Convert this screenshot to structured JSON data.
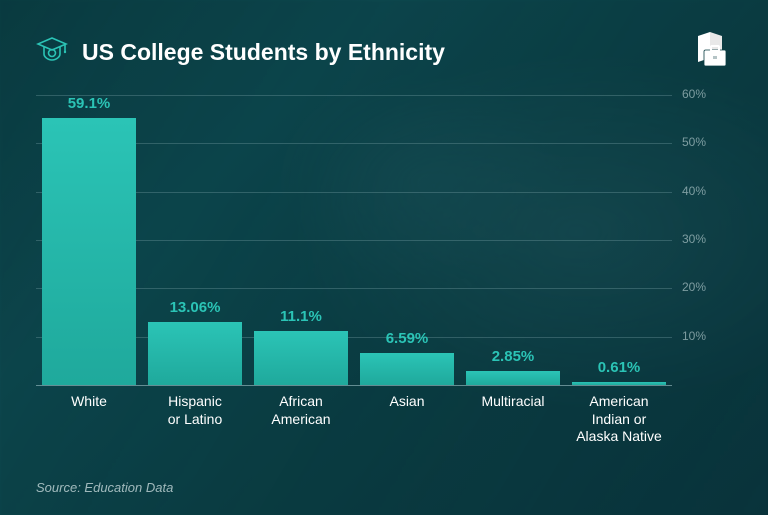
{
  "title": "US College Students by Ethnicity",
  "source": "Source: Education Data",
  "chart": {
    "type": "bar",
    "ymax": 60,
    "ytick_step": 10,
    "grid_color": "rgba(120,160,165,0.35)",
    "bar_color": "#2bc4b6",
    "value_color": "#2bc4b6",
    "label_color": "#ffffff",
    "background": "transparent",
    "categories": [
      "White",
      "Hispanic\nor Latino",
      "African\nAmerican",
      "Asian",
      "Multiracial",
      "American\nIndian or\nAlaska Native"
    ],
    "values": [
      59.1,
      13.06,
      11.1,
      6.59,
      2.85,
      0.61
    ],
    "value_labels": [
      "59.1%",
      "13.06%",
      "11.1%",
      "6.59%",
      "2.85%",
      "0.61%"
    ],
    "value_fontsize": 15,
    "label_fontsize": 14,
    "gridlabel_fontsize": 12,
    "gridlabel_color": "rgba(200,220,222,0.6)"
  },
  "icons": {
    "title_icon": "graduate-icon",
    "logo": "book-briefcase-logo"
  },
  "colors": {
    "accent": "#2bc4b6",
    "bg_gradient_start": "#0a3d42",
    "bg_gradient_end": "#083038"
  },
  "gridlabels": [
    "60%",
    "50%",
    "40%",
    "30%",
    "20%",
    "10%"
  ]
}
